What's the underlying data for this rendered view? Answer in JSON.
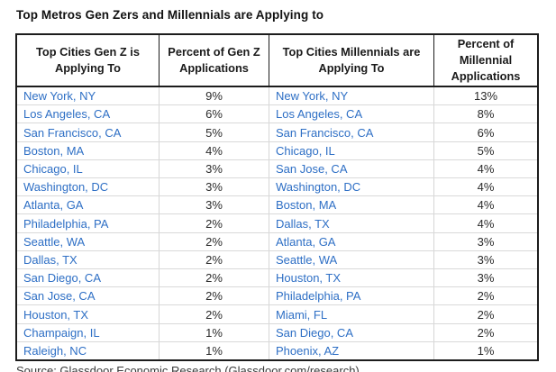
{
  "page": {
    "title": "Top Metros Gen Zers and Millennials are Applying to",
    "source_note": "Source: Glassdoor Economic Research (Glassdoor.com/research)"
  },
  "colors": {
    "city_link": "#2e6fc5",
    "header_text": "#1a1a1a",
    "border_dark": "#1c1c1c",
    "border_light": "#d9d9d9"
  },
  "table": {
    "headers": [
      "Top Cities Gen Z is Applying To",
      "Percent of Gen Z Applications",
      "Top Cities Millennials are Applying To",
      "Percent of Millennial Applications"
    ],
    "rows": [
      {
        "genz_city": "New York, NY",
        "genz_pct": "9%",
        "mill_city": "New York, NY",
        "mill_pct": "13%"
      },
      {
        "genz_city": "Los Angeles, CA",
        "genz_pct": "6%",
        "mill_city": "Los Angeles, CA",
        "mill_pct": "8%"
      },
      {
        "genz_city": "San Francisco, CA",
        "genz_pct": "5%",
        "mill_city": "San Francisco, CA",
        "mill_pct": "6%"
      },
      {
        "genz_city": "Boston, MA",
        "genz_pct": "4%",
        "mill_city": "Chicago, IL",
        "mill_pct": "5%"
      },
      {
        "genz_city": "Chicago, IL",
        "genz_pct": "3%",
        "mill_city": "San Jose, CA",
        "mill_pct": "4%"
      },
      {
        "genz_city": "Washington, DC",
        "genz_pct": "3%",
        "mill_city": "Washington, DC",
        "mill_pct": "4%"
      },
      {
        "genz_city": "Atlanta, GA",
        "genz_pct": "3%",
        "mill_city": "Boston, MA",
        "mill_pct": "4%"
      },
      {
        "genz_city": "Philadelphia, PA",
        "genz_pct": "2%",
        "mill_city": "Dallas, TX",
        "mill_pct": "4%"
      },
      {
        "genz_city": "Seattle, WA",
        "genz_pct": "2%",
        "mill_city": "Atlanta, GA",
        "mill_pct": "3%"
      },
      {
        "genz_city": "Dallas, TX",
        "genz_pct": "2%",
        "mill_city": "Seattle, WA",
        "mill_pct": "3%"
      },
      {
        "genz_city": "San Diego, CA",
        "genz_pct": "2%",
        "mill_city": "Houston, TX",
        "mill_pct": "3%"
      },
      {
        "genz_city": "San Jose, CA",
        "genz_pct": "2%",
        "mill_city": "Philadelphia, PA",
        "mill_pct": "2%"
      },
      {
        "genz_city": "Houston, TX",
        "genz_pct": "2%",
        "mill_city": "Miami, FL",
        "mill_pct": "2%"
      },
      {
        "genz_city": "Champaign, IL",
        "genz_pct": "1%",
        "mill_city": "San Diego, CA",
        "mill_pct": "2%"
      },
      {
        "genz_city": "Raleigh, NC",
        "genz_pct": "1%",
        "mill_city": "Phoenix, AZ",
        "mill_pct": "1%"
      }
    ]
  },
  "chart_data": {
    "type": "table",
    "title": "Top Metros Gen Zers and Millennials are Applying to",
    "columns": [
      "Top Cities Gen Z is Applying To",
      "Percent of Gen Z Applications",
      "Top Cities Millennials are Applying To",
      "Percent of Millennial Applications"
    ],
    "series": [
      {
        "name": "Gen Z",
        "categories": [
          "New York, NY",
          "Los Angeles, CA",
          "San Francisco, CA",
          "Boston, MA",
          "Chicago, IL",
          "Washington, DC",
          "Atlanta, GA",
          "Philadelphia, PA",
          "Seattle, WA",
          "Dallas, TX",
          "San Diego, CA",
          "San Jose, CA",
          "Houston, TX",
          "Champaign, IL",
          "Raleigh, NC"
        ],
        "values_pct": [
          9,
          6,
          5,
          4,
          3,
          3,
          3,
          2,
          2,
          2,
          2,
          2,
          2,
          1,
          1
        ]
      },
      {
        "name": "Millennials",
        "categories": [
          "New York, NY",
          "Los Angeles, CA",
          "San Francisco, CA",
          "Chicago, IL",
          "San Jose, CA",
          "Washington, DC",
          "Boston, MA",
          "Dallas, TX",
          "Atlanta, GA",
          "Seattle, WA",
          "Houston, TX",
          "Philadelphia, PA",
          "Miami, FL",
          "San Diego, CA",
          "Phoenix, AZ"
        ],
        "values_pct": [
          13,
          8,
          6,
          5,
          4,
          4,
          4,
          4,
          3,
          3,
          3,
          2,
          2,
          2,
          1
        ]
      }
    ],
    "value_unit": "%",
    "grid": true,
    "legend_position": "none"
  }
}
